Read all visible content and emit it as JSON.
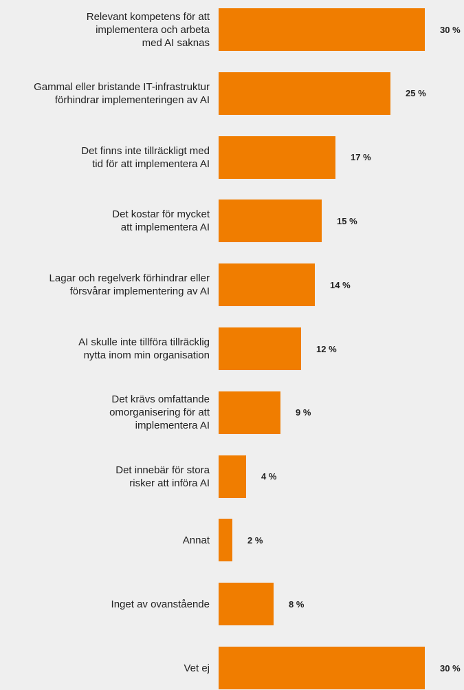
{
  "chart_data": {
    "type": "bar",
    "orientation": "horizontal",
    "color": "#f07d00",
    "categories": [
      "Relevant kompetens för att\nimplementera och arbeta\nmed AI saknas",
      "Gammal eller bristande IT-infrastruktur\nförhindrar implementeringen av AI",
      "Det finns inte tillräckligt med\ntid för att implementera AI",
      "Det kostar för mycket\natt implementera AI",
      "Lagar och regelverk förhindrar eller\nförsvårar implementering av AI",
      "AI skulle inte tillföra tillräcklig\nnytta inom min organisation",
      "Det krävs omfattande\nomorganisering för att\nimplementera AI",
      "Det innebär för stora\nrisker att införa AI",
      "Annat",
      "Inget av ovanstående",
      "Vet ej"
    ],
    "values": [
      30,
      25,
      17,
      15,
      14,
      12,
      9,
      4,
      2,
      8,
      30
    ],
    "value_labels": [
      "30 %",
      "25 %",
      "17 %",
      "15 %",
      "14 %",
      "12 %",
      "9 %",
      "4 %",
      "2 %",
      "8 %",
      "30 %"
    ]
  }
}
